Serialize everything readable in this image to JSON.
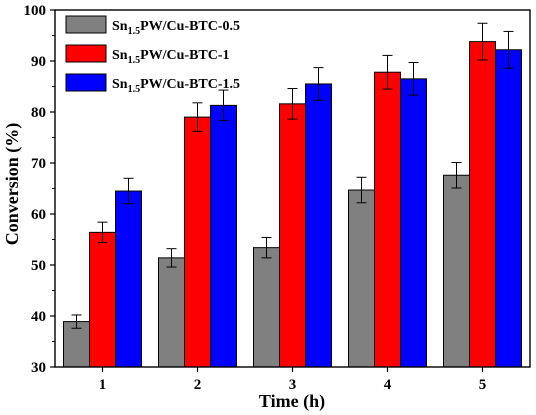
{
  "chart_data": {
    "type": "bar",
    "xlabel": "Time (h)",
    "ylabel": "Conversion (%)",
    "ylim": [
      30,
      100
    ],
    "yticks": [
      30,
      40,
      50,
      60,
      70,
      80,
      90,
      100
    ],
    "categories": [
      "1",
      "2",
      "3",
      "4",
      "5"
    ],
    "grid": false,
    "legend_position": "top-left",
    "series": [
      {
        "name": "Sn1.5PW/Cu-BTC-0.5",
        "legend_prefix": "Sn",
        "legend_sub": "1.5",
        "legend_suffix": "PW/Cu-BTC-0.5",
        "color": "#808080",
        "values": [
          38.9,
          51.4,
          53.4,
          64.7,
          67.6
        ],
        "errors": [
          1.3,
          1.8,
          2.0,
          2.5,
          2.5
        ]
      },
      {
        "name": "Sn1.5PW/Cu-BTC-1",
        "legend_prefix": "Sn",
        "legend_sub": "1.5",
        "legend_suffix": "PW/Cu-BTC-1",
        "color": "#ff0000",
        "values": [
          56.4,
          79.0,
          81.6,
          87.8,
          93.8
        ],
        "errors": [
          2.0,
          2.8,
          3.0,
          3.3,
          3.6
        ]
      },
      {
        "name": "Sn1.5PW/Cu-BTC-1.5",
        "legend_prefix": "Sn",
        "legend_sub": "1.5",
        "legend_suffix": "PW/Cu-BTC-1.5",
        "color": "#0000ff",
        "values": [
          64.5,
          81.3,
          85.5,
          86.5,
          92.2
        ],
        "errors": [
          2.5,
          3.0,
          3.2,
          3.2,
          3.6
        ]
      }
    ]
  }
}
